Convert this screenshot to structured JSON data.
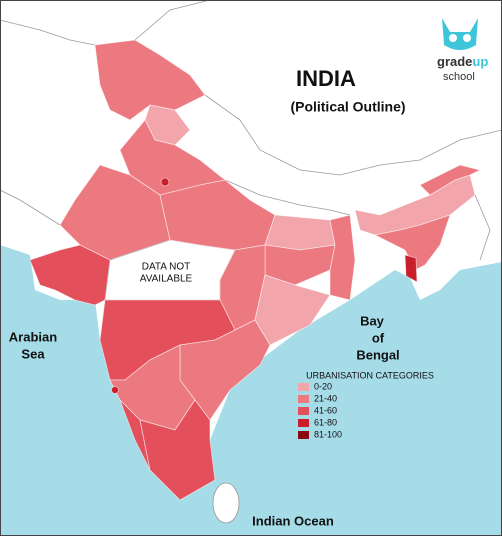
{
  "header": {
    "title": "INDIA",
    "subtitle": "(Political Outline)"
  },
  "logo": {
    "brand_a": "grade",
    "brand_b": "up",
    "sub": "school"
  },
  "seas": {
    "arabian_sea": [
      "Arabian",
      "Sea"
    ],
    "bay_of_bengal": [
      "Bay",
      "of",
      "Bengal"
    ],
    "indian_ocean": "Indian Ocean"
  },
  "no_data": [
    "DATA NOT",
    "AVAILABLE"
  ],
  "legend": {
    "title": "URBANISATION CATEGORIES",
    "items": [
      {
        "label": "0-20",
        "color": "#f2a6ac"
      },
      {
        "label": "21-40",
        "color": "#ec7880"
      },
      {
        "label": "41-60",
        "color": "#e3505b"
      },
      {
        "label": "61-80",
        "color": "#c91f2c"
      },
      {
        "label": "81-100",
        "color": "#8b0a10"
      }
    ]
  }
}
